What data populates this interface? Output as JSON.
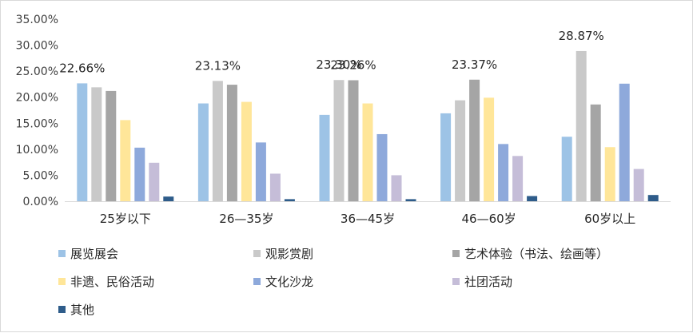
{
  "chart_data": {
    "type": "bar",
    "categories": [
      "25岁以下",
      "26—35岁",
      "36—45岁",
      "46—60岁",
      "60岁以上"
    ],
    "series": [
      {
        "name": "展览展会",
        "color": "#9DC3E6",
        "values": [
          22.66,
          18.8,
          16.6,
          16.9,
          12.4
        ]
      },
      {
        "name": "观影赏剧",
        "color": "#C9C9C9",
        "values": [
          21.9,
          23.13,
          23.3,
          19.4,
          28.87
        ]
      },
      {
        "name": "艺术体验（书法、绘画等）",
        "color": "#A5A5A5",
        "values": [
          21.2,
          22.4,
          23.26,
          23.37,
          18.6
        ]
      },
      {
        "name": "非遗、民俗活动",
        "color": "#FFE699",
        "values": [
          15.6,
          19.1,
          18.8,
          19.9,
          10.4
        ]
      },
      {
        "name": "文化沙龙",
        "color": "#8EA9DB",
        "values": [
          10.3,
          11.3,
          12.9,
          11.0,
          22.6
        ]
      },
      {
        "name": "社团活动",
        "color": "#C5BDD8",
        "values": [
          7.4,
          5.3,
          5.0,
          8.7,
          6.2
        ]
      },
      {
        "name": "其他",
        "color": "#2E5C8A",
        "values": [
          0.9,
          0.4,
          0.4,
          1.0,
          1.2
        ]
      }
    ],
    "ylim": [
      0,
      35
    ],
    "yticks": [
      "0.00%",
      "5.00%",
      "10.00%",
      "15.00%",
      "20.00%",
      "25.00%",
      "30.00%",
      "35.00%"
    ],
    "ytick_values": [
      0,
      5,
      10,
      15,
      20,
      25,
      30,
      35
    ],
    "data_labels": [
      {
        "category_index": 0,
        "series_index": 0,
        "text": "22.66%"
      },
      {
        "category_index": 1,
        "series_index": 1,
        "text": "23.13%"
      },
      {
        "category_index": 2,
        "series_index": 1,
        "text": "23.30%"
      },
      {
        "category_index": 2,
        "series_index": 2,
        "text": "23.26%"
      },
      {
        "category_index": 3,
        "series_index": 2,
        "text": "23.37%"
      },
      {
        "category_index": 4,
        "series_index": 1,
        "text": "28.87%"
      }
    ],
    "grid": false,
    "legend_position": "bottom",
    "title": "",
    "xlabel": "",
    "ylabel": ""
  }
}
